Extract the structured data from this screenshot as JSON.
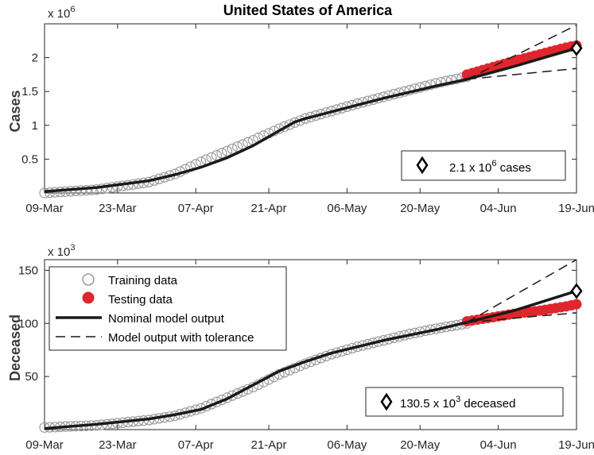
{
  "chart_data": [
    {
      "type": "scatter",
      "title": "United States of America",
      "ylabel": "Cases",
      "y_multiplier": {
        "base": "x 10",
        "exp": "6"
      },
      "x_ticks": [
        "09-Mar",
        "23-Mar",
        "07-Apr",
        "21-Apr",
        "06-May",
        "20-May",
        "04-Jun",
        "19-Jun"
      ],
      "x_tick_days": [
        0,
        14,
        29,
        43,
        58,
        72,
        87,
        102
      ],
      "xlim": [
        0,
        102
      ],
      "y_ticks": [
        "0.5",
        "1",
        "1.5",
        "2"
      ],
      "y_tick_values": [
        0.5,
        1.0,
        1.5,
        2.0
      ],
      "ylim": [
        0,
        2.5
      ],
      "training_end_day": 81,
      "series": {
        "training": {
          "x": [
            0,
            10,
            20,
            25,
            30,
            35,
            40,
            45,
            50,
            55,
            60,
            65,
            70,
            75,
            81
          ],
          "y": [
            0.0,
            0.05,
            0.16,
            0.28,
            0.46,
            0.62,
            0.78,
            0.95,
            1.1,
            1.21,
            1.32,
            1.42,
            1.52,
            1.62,
            1.72
          ]
        },
        "testing": {
          "x": [
            81,
            85,
            90,
            95,
            100,
            102
          ],
          "y": [
            1.75,
            1.84,
            1.95,
            2.05,
            2.15,
            2.18
          ]
        },
        "model": {
          "x": [
            0,
            10,
            20,
            25,
            30,
            35,
            40,
            45,
            48,
            50,
            55,
            60,
            65,
            70,
            75,
            81,
            90,
            102
          ],
          "y": [
            0.02,
            0.08,
            0.18,
            0.27,
            0.38,
            0.52,
            0.7,
            0.92,
            1.05,
            1.1,
            1.2,
            1.3,
            1.4,
            1.49,
            1.58,
            1.68,
            1.87,
            2.14
          ]
        },
        "upper": {
          "x": [
            81,
            102
          ],
          "y": [
            1.68,
            2.48
          ]
        },
        "lower": {
          "x": [
            81,
            102
          ],
          "y": [
            1.68,
            1.84
          ]
        },
        "marker": {
          "x": 102,
          "y": 2.14
        }
      },
      "annotation": {
        "value": "2.1 x 10",
        "exp": "6",
        "unit": " cases"
      }
    },
    {
      "type": "scatter",
      "ylabel": "Deceased",
      "y_multiplier": {
        "base": "x 10",
        "exp": "3"
      },
      "x_ticks": [
        "09-Mar",
        "23-Mar",
        "07-Apr",
        "21-Apr",
        "06-May",
        "20-May",
        "04-Jun",
        "19-Jun"
      ],
      "x_tick_days": [
        0,
        14,
        29,
        43,
        58,
        72,
        87,
        102
      ],
      "xlim": [
        0,
        102
      ],
      "y_ticks": [
        "50",
        "100",
        "150"
      ],
      "y_tick_values": [
        50,
        100,
        150
      ],
      "ylim": [
        0,
        160
      ],
      "training_end_day": 81,
      "series": {
        "training": {
          "x": [
            0,
            10,
            20,
            25,
            30,
            35,
            40,
            45,
            50,
            55,
            60,
            65,
            70,
            75,
            81
          ],
          "y": [
            2,
            4,
            9,
            13,
            20,
            30,
            40,
            52,
            62,
            71,
            78,
            84,
            90,
            95,
            100
          ]
        },
        "testing": {
          "x": [
            81,
            85,
            90,
            95,
            100,
            102
          ],
          "y": [
            102,
            105,
            109,
            112,
            116,
            118
          ]
        },
        "model": {
          "x": [
            0,
            10,
            20,
            25,
            30,
            35,
            40,
            45,
            50,
            55,
            60,
            65,
            70,
            75,
            81,
            90,
            102
          ],
          "y": [
            1,
            5,
            10,
            14,
            19,
            29,
            42,
            55,
            64,
            72,
            78,
            84,
            89,
            94,
            101,
            112,
            130.5
          ]
        },
        "upper": {
          "x": [
            81,
            102
          ],
          "y": [
            101,
            160
          ]
        },
        "lower": {
          "x": [
            81,
            102
          ],
          "y": [
            101,
            110
          ]
        },
        "marker": {
          "x": 102,
          "y": 130.5
        }
      },
      "annotation": {
        "value": "130.5 x 10",
        "exp": "3",
        "unit": " deceased"
      }
    }
  ],
  "legend": {
    "training": "Training data",
    "testing": "Testing data",
    "nominal": "Nominal model output",
    "tolerance": "Model output with tolerance"
  },
  "colors": {
    "training": "#9a9a9a",
    "testing": "#e0262c",
    "model": "#1a1a1a"
  }
}
